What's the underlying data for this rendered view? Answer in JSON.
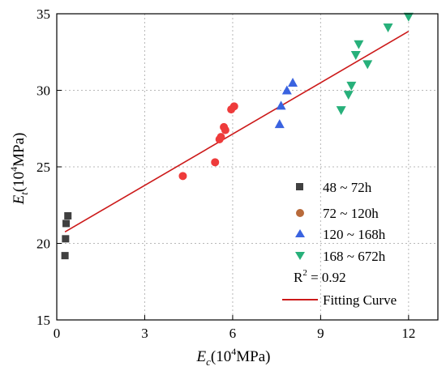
{
  "chart_data": {
    "type": "scatter",
    "xlabel": {
      "main": "E",
      "sub": "c",
      "unit_pre": "(10",
      "sup": "4",
      "unit_post": "MPa)"
    },
    "ylabel": {
      "main": "E",
      "sub": "t",
      "unit_pre": "(10",
      "sup": "4",
      "unit_post": "MPa)"
    },
    "xlim": [
      0,
      13
    ],
    "ylim": [
      15,
      35
    ],
    "xticks": [
      0,
      3,
      6,
      9,
      12
    ],
    "yticks": [
      15,
      20,
      25,
      30,
      35
    ],
    "xtick_labels": [
      "0",
      "3",
      "6",
      "9",
      "12"
    ],
    "ytick_labels": [
      "15",
      "20",
      "25",
      "30",
      "35"
    ],
    "grid": true,
    "legend_position": "bottom-right",
    "series": [
      {
        "name": "48 ~ 72h",
        "marker": "square",
        "color": "#404040",
        "points": [
          [
            0.28,
            19.2
          ],
          [
            0.3,
            20.3
          ],
          [
            0.32,
            21.3
          ],
          [
            0.38,
            21.8
          ]
        ]
      },
      {
        "name": "72 ~ 120h",
        "marker": "circle",
        "legend_color": "#b86a3a",
        "color": "#ee3b3b",
        "points": [
          [
            4.3,
            24.4
          ],
          [
            5.4,
            25.3
          ],
          [
            5.55,
            26.8
          ],
          [
            5.6,
            26.95
          ],
          [
            5.7,
            27.6
          ],
          [
            5.75,
            27.4
          ],
          [
            5.95,
            28.75
          ],
          [
            6.05,
            28.95
          ]
        ]
      },
      {
        "name": "120 ~ 168h",
        "marker": "triangle-up",
        "color": "#3a63e0",
        "points": [
          [
            7.6,
            27.8
          ],
          [
            7.65,
            29.0
          ],
          [
            7.85,
            30.0
          ],
          [
            8.05,
            30.5
          ]
        ]
      },
      {
        "name": "168 ~ 672h",
        "marker": "triangle-down",
        "color": "#27b07a",
        "points": [
          [
            9.7,
            28.7
          ],
          [
            9.95,
            29.7
          ],
          [
            10.05,
            30.3
          ],
          [
            10.2,
            32.3
          ],
          [
            10.3,
            33.0
          ],
          [
            10.6,
            31.7
          ],
          [
            11.3,
            34.1
          ],
          [
            12.0,
            34.8
          ]
        ]
      }
    ],
    "fit": {
      "name": "Fitting Curve",
      "color": "#cc1a1a",
      "x": [
        0.28,
        12.0
      ],
      "y": [
        20.75,
        33.85
      ]
    },
    "r2_label": "R",
    "r2_sup": "2",
    "r2_value": " = 0.92"
  }
}
